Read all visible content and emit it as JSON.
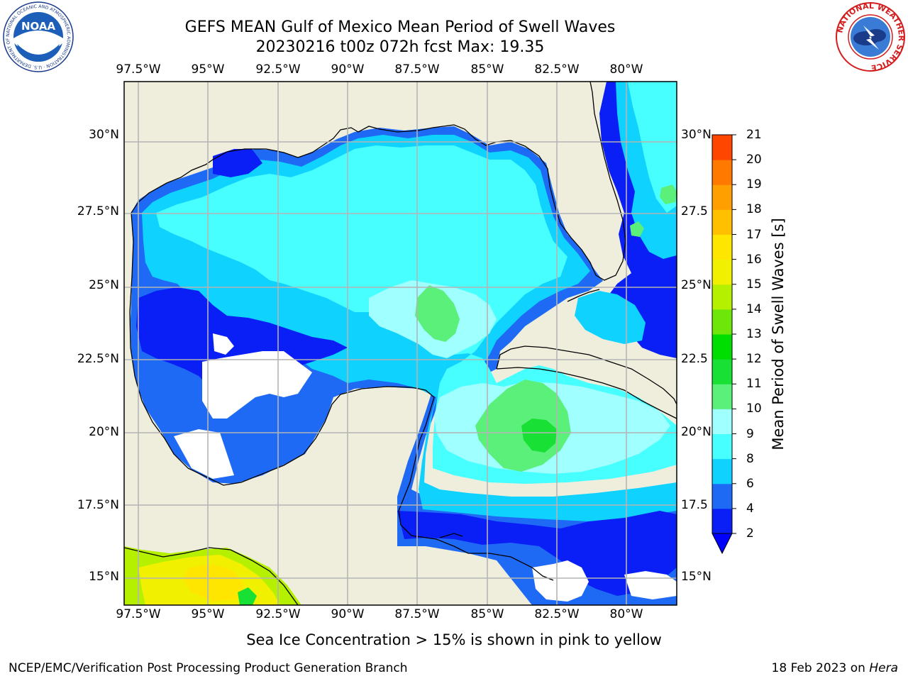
{
  "title": {
    "line1": "GEFS MEAN Gulf of Mexico Mean Period of Swell Waves",
    "line2": "20230216 t00z 072h fcst   Max: 19.35"
  },
  "map": {
    "lon_ticks": [
      "97.5°W",
      "95°W",
      "92.5°W",
      "90°W",
      "87.5°W",
      "85°W",
      "82.5°W",
      "80°W"
    ],
    "lat_ticks_left": [
      "30°N",
      "27.5°N",
      "25°N",
      "22.5°N",
      "20°N",
      "17.5°N",
      "15°N"
    ],
    "lat_ticks_right": [
      "30°N",
      "27.5",
      "25°N",
      "22.5",
      "20°N",
      "17.5",
      "15°N"
    ],
    "extent": {
      "lon_min": -98.0,
      "lon_max": -78.2,
      "lat_min": 14.0,
      "lat_max": 31.8
    },
    "colors": {
      "land": "#efeedd",
      "water_missing": "#ffffff",
      "grid": "#b4b4b4",
      "coast": "#000000"
    }
  },
  "colorbar": {
    "title": "Mean Period of Swell Waves [s]",
    "tick_labels": [
      "2",
      "4",
      "6",
      "8",
      "9",
      "10",
      "11",
      "12",
      "13",
      "14",
      "15",
      "16",
      "17",
      "18",
      "19",
      "20",
      "21"
    ],
    "levels": [
      2,
      4,
      6,
      8,
      9,
      10,
      11,
      12,
      13,
      14,
      15,
      16,
      17,
      18,
      19,
      20,
      21
    ],
    "colors": [
      "#0a1ff5",
      "#1e6af5",
      "#10d2ff",
      "#48ffff",
      "#a0ffff",
      "#5af07a",
      "#18e035",
      "#00dd00",
      "#6ee60a",
      "#b4f000",
      "#f0f000",
      "#ffe600",
      "#ffc000",
      "#ffa000",
      "#ff7800",
      "#ff4600",
      "#ff0000"
    ],
    "under_color": "#0000ff"
  },
  "caption": "Sea Ice Concentration > 15% is shown in pink to yellow",
  "footer": {
    "left": "NCEP/EMC/Verification Post Processing Product Generation Branch",
    "right_date": "18 Feb 2023 on ",
    "right_host": "Hera"
  },
  "logos": {
    "noaa": {
      "text": "NOAA",
      "ring_text": "NATIONAL OCEANIC AND ATMOSPHERIC ADMINISTRATION · U.S. DEPARTMENT OF COMMERCE"
    },
    "nws": {
      "ring_text": "NATIONAL WEATHER SERVICE"
    }
  }
}
